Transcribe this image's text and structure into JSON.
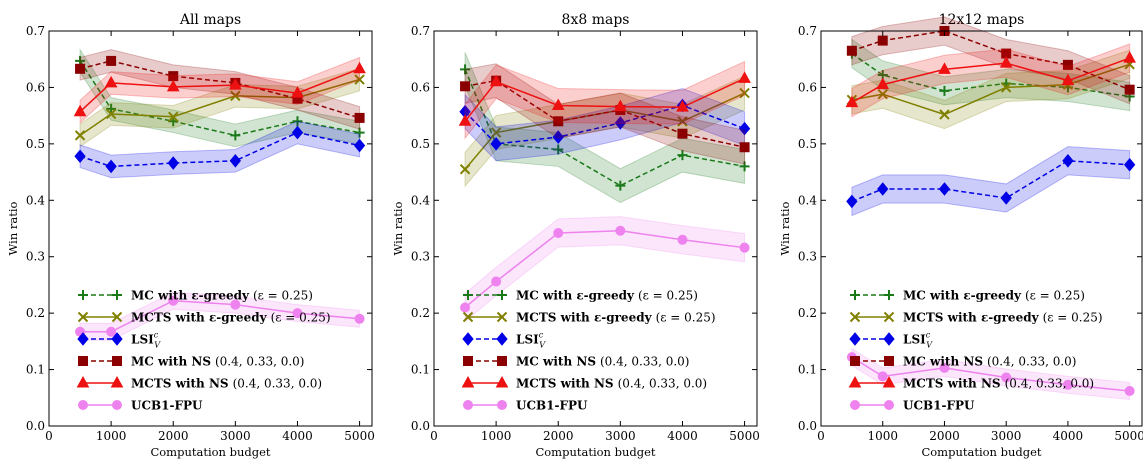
{
  "chart_data": [
    {
      "type": "line",
      "title": "All maps",
      "xlabel": "Computation budget",
      "ylabel": "Win ratio",
      "xlim": [
        0,
        5200
      ],
      "ylim": [
        0.0,
        0.7
      ],
      "xticks": [
        0,
        1000,
        2000,
        3000,
        4000,
        5000
      ],
      "yticks": [
        0.0,
        0.1,
        0.2,
        0.3,
        0.4,
        0.5,
        0.6,
        0.7
      ],
      "legend_position": "bottom-center",
      "x": [
        500,
        1000,
        2000,
        3000,
        4000,
        5000
      ],
      "series": [
        {
          "id": "mc_egreedy",
          "values": [
            0.647,
            0.562,
            0.54,
            0.515,
            0.54,
            0.52
          ],
          "band": 0.02
        },
        {
          "id": "mcts_egreedy",
          "values": [
            0.515,
            0.553,
            0.548,
            0.585,
            0.582,
            0.614
          ],
          "band": 0.02
        },
        {
          "id": "lsi",
          "values": [
            0.478,
            0.46,
            0.466,
            0.47,
            0.52,
            0.497
          ],
          "band": 0.02
        },
        {
          "id": "mc_ns",
          "values": [
            0.633,
            0.647,
            0.62,
            0.608,
            0.58,
            0.546
          ],
          "band": 0.02
        },
        {
          "id": "mcts_ns",
          "values": [
            0.557,
            0.608,
            0.601,
            0.604,
            0.59,
            0.633
          ],
          "band": 0.02
        },
        {
          "id": "ucb1",
          "values": [
            0.167,
            0.167,
            0.222,
            0.215,
            0.2,
            0.19
          ],
          "band": 0.015
        }
      ]
    },
    {
      "type": "line",
      "title": "8x8 maps",
      "xlabel": "Computation budget",
      "ylabel": "Win ratio",
      "xlim": [
        0,
        5200
      ],
      "ylim": [
        0.0,
        0.7
      ],
      "xticks": [
        0,
        1000,
        2000,
        3000,
        4000,
        5000
      ],
      "yticks": [
        0.0,
        0.1,
        0.2,
        0.3,
        0.4,
        0.5,
        0.6,
        0.7
      ],
      "legend_position": "bottom-center",
      "x": [
        500,
        1000,
        2000,
        3000,
        4000,
        5000
      ],
      "series": [
        {
          "id": "mc_egreedy",
          "values": [
            0.632,
            0.5,
            0.49,
            0.426,
            0.48,
            0.46
          ],
          "band": 0.03
        },
        {
          "id": "mcts_egreedy",
          "values": [
            0.455,
            0.52,
            0.54,
            0.56,
            0.54,
            0.59
          ],
          "band": 0.03
        },
        {
          "id": "lsi",
          "values": [
            0.557,
            0.5,
            0.512,
            0.537,
            0.568,
            0.527
          ],
          "band": 0.03
        },
        {
          "id": "mc_ns",
          "values": [
            0.602,
            0.612,
            0.54,
            0.56,
            0.518,
            0.494
          ],
          "band": 0.03
        },
        {
          "id": "mcts_ns",
          "values": [
            0.54,
            0.61,
            0.568,
            0.566,
            0.565,
            0.616
          ],
          "band": 0.03
        },
        {
          "id": "ucb1",
          "values": [
            0.21,
            0.256,
            0.342,
            0.346,
            0.33,
            0.316
          ],
          "band": 0.025
        }
      ]
    },
    {
      "type": "line",
      "title": "12x12 maps",
      "xlabel": "Computation budget",
      "ylabel": "Win ratio",
      "xlim": [
        0,
        5200
      ],
      "ylim": [
        0.0,
        0.7
      ],
      "xticks": [
        0,
        1000,
        2000,
        3000,
        4000,
        5000
      ],
      "yticks": [
        0.0,
        0.1,
        0.2,
        0.3,
        0.4,
        0.5,
        0.6,
        0.7
      ],
      "legend_position": "bottom-center",
      "x": [
        500,
        1000,
        2000,
        3000,
        4000,
        5000
      ],
      "series": [
        {
          "id": "mc_egreedy",
          "values": [
            0.66,
            0.622,
            0.594,
            0.607,
            0.6,
            0.584
          ],
          "band": 0.025
        },
        {
          "id": "mcts_egreedy",
          "values": [
            0.578,
            0.588,
            0.552,
            0.6,
            0.605,
            0.641
          ],
          "band": 0.025
        },
        {
          "id": "lsi",
          "values": [
            0.398,
            0.42,
            0.42,
            0.404,
            0.47,
            0.463
          ],
          "band": 0.025
        },
        {
          "id": "mc_ns",
          "values": [
            0.665,
            0.683,
            0.7,
            0.66,
            0.64,
            0.596
          ],
          "band": 0.025
        },
        {
          "id": "mcts_ns",
          "values": [
            0.573,
            0.605,
            0.632,
            0.643,
            0.612,
            0.652
          ],
          "band": 0.025
        },
        {
          "id": "ucb1",
          "values": [
            0.122,
            0.088,
            0.103,
            0.086,
            0.073,
            0.062
          ],
          "band": 0.015
        }
      ]
    }
  ],
  "legend": [
    {
      "id": "mc_egreedy",
      "label": "MC with ε-greedy",
      "param": "(ε = 0.25)",
      "color": "#1a7a1a",
      "marker": "plus",
      "dash": true
    },
    {
      "id": "mcts_egreedy",
      "label": "MCTS with ε-greedy",
      "param": "(ε = 0.25)",
      "color": "#808000",
      "marker": "x",
      "dash": false
    },
    {
      "id": "lsi",
      "label": "LSI",
      "sub": "V",
      "sup": "c",
      "param": "",
      "color": "#0000e6",
      "marker": "diamond",
      "dash": true
    },
    {
      "id": "mc_ns",
      "label": "MC with NS",
      "param": "(0.4, 0.33, 0.0)",
      "color": "#8b0000",
      "marker": "square",
      "dash": true
    },
    {
      "id": "mcts_ns",
      "label": "MCTS with NS",
      "param": "(0.4, 0.33, 0.0)",
      "color": "#ee1111",
      "marker": "triangle",
      "dash": false
    },
    {
      "id": "ucb1",
      "label": "UCB1-FPU",
      "param": "",
      "color": "#ee82ee",
      "marker": "circle",
      "dash": false
    }
  ]
}
